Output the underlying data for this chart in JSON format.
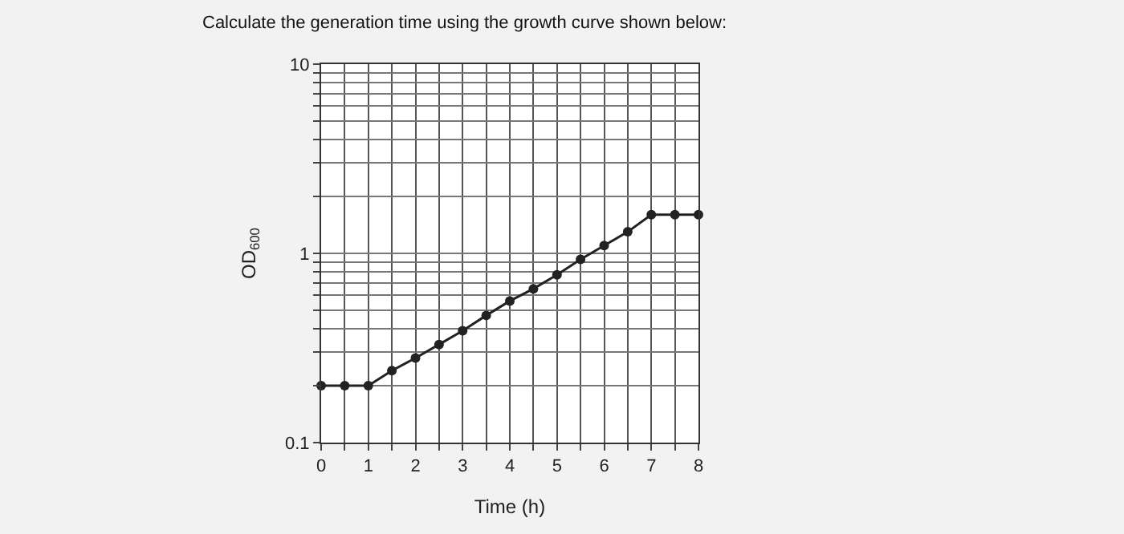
{
  "chart_data": {
    "type": "line",
    "title": "Calculate the generation time using the growth curve shown below:",
    "xlabel": "Time (h)",
    "ylabel": "OD$_{600}$",
    "x": [
      0,
      0.5,
      1,
      1.5,
      2,
      2.5,
      3,
      3.5,
      4,
      4.5,
      5,
      5.5,
      6,
      6.5,
      7,
      7.5,
      8
    ],
    "series": [
      {
        "color": "#222222",
        "values": [
          0.2,
          0.2,
          0.2,
          0.24,
          0.28,
          0.33,
          0.39,
          0.47,
          0.56,
          0.65,
          0.77,
          0.93,
          1.1,
          1.3,
          1.6,
          1.6,
          1.6
        ]
      }
    ],
    "log": "y",
    "marker": "circle",
    "line_style": "solid",
    "grid": true,
    "xlim": [
      0,
      8
    ],
    "ylim": [
      0.1,
      10
    ],
    "xticks": [
      0,
      {
        "value": 0.5,
        "label": null
      },
      1,
      {
        "value": 1.5,
        "label": null
      },
      2,
      {
        "value": 2.5,
        "label": null
      },
      3,
      {
        "value": 3.5,
        "label": null
      },
      4,
      {
        "value": 4.5,
        "label": null
      },
      5,
      {
        "value": 5.5,
        "label": null
      },
      6,
      {
        "value": 6.5,
        "label": null
      },
      7,
      {
        "value": 7.5,
        "label": null
      },
      8
    ],
    "yticks": [
      0.1,
      {
        "value": 0.2,
        "label": null
      },
      {
        "value": 0.3,
        "label": null
      },
      {
        "value": 0.4,
        "label": null
      },
      {
        "value": 0.5,
        "label": null
      },
      {
        "value": 0.6,
        "label": null
      },
      {
        "value": 0.7,
        "label": null
      },
      {
        "value": 0.8,
        "label": null
      },
      {
        "value": 0.9,
        "label": null
      },
      1,
      {
        "value": 2,
        "label": null
      },
      {
        "value": 3,
        "label": null
      },
      {
        "value": 4,
        "label": null
      },
      {
        "value": 5,
        "label": null
      },
      {
        "value": 6,
        "label": null
      },
      {
        "value": 7,
        "label": null
      },
      {
        "value": 8,
        "label": null
      },
      {
        "value": 9,
        "label": null
      },
      10
    ]
  }
}
